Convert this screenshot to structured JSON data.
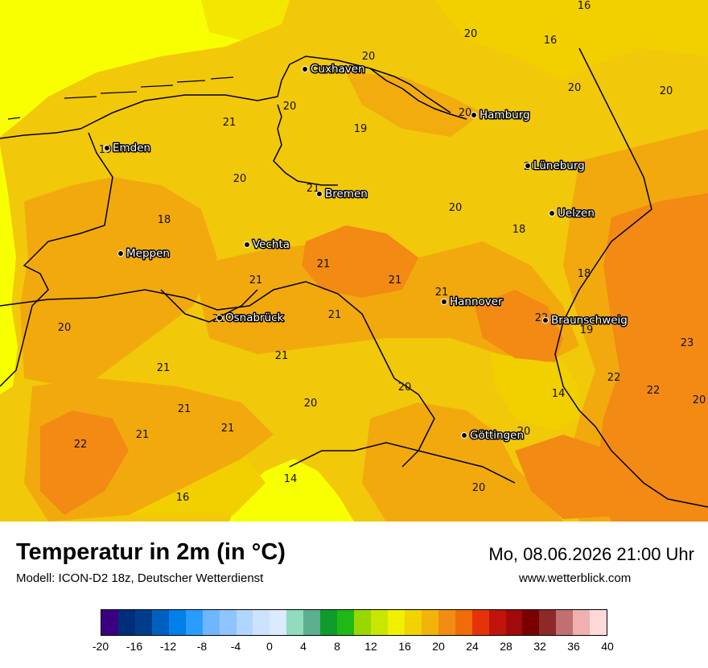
{
  "title": "Temperatur in 2m (in °C)",
  "model": "Modell: ICON-D2 18z, Deutscher Wetterdienst",
  "datetime": "Mo, 08.06.2026 21:00 Uhr",
  "website": "www.wetterblick.com",
  "colors": {
    "t14_16": "#eef000",
    "t16_18": "#f8ff00",
    "t18_20": "#f2c80a",
    "t20_22": "#f2a90e",
    "t22_24": "#f28a14",
    "t24_26": "#ef6b0e",
    "land_base": "#f2c80a"
  },
  "cities": [
    {
      "name": "Cuxhaven",
      "icon": "city-dot"
    },
    {
      "name": "Hamburg",
      "icon": "city-dot"
    },
    {
      "name": "Emden",
      "icon": "city-dot"
    },
    {
      "name": "Lüneburg",
      "icon": "city-dot"
    },
    {
      "name": "Bremen",
      "icon": "city-dot"
    },
    {
      "name": "Uelzen",
      "icon": "city-dot"
    },
    {
      "name": "Vechta",
      "icon": "city-dot"
    },
    {
      "name": "Meppen",
      "icon": "city-dot"
    },
    {
      "name": "Hannover",
      "icon": "city-dot"
    },
    {
      "name": "Osnabrück",
      "icon": "city-dot"
    },
    {
      "name": "Braunschweig",
      "icon": "city-dot"
    },
    {
      "name": "Göttingen",
      "icon": "city-dot"
    }
  ],
  "temps": [
    "16",
    "20",
    "16",
    "20",
    "20",
    "20",
    "20",
    "21",
    "19",
    "20",
    "19",
    "20",
    "21",
    "20",
    "18",
    "20",
    "18",
    "21",
    "21",
    "21",
    "18",
    "21",
    "21",
    "21",
    "22",
    "19",
    "20",
    "23",
    "21",
    "22",
    "22",
    "20",
    "20",
    "14",
    "21",
    "21",
    "21",
    "20",
    "20",
    "22",
    "21",
    "14",
    "16",
    "20"
  ],
  "colorbar": {
    "colors": [
      "#3b007f",
      "#002d78",
      "#003c8c",
      "#0060c0",
      "#0080e8",
      "#2a9cff",
      "#70b6ff",
      "#8ec4ff",
      "#b0d6ff",
      "#cce2ff",
      "#dceaff",
      "#90dcbc",
      "#5cb090",
      "#109c2c",
      "#20b814",
      "#98d800",
      "#c8e600",
      "#f0f000",
      "#f2d200",
      "#f2b40a",
      "#f28c14",
      "#f06c0a",
      "#e6320a",
      "#c0140a",
      "#a00a0a",
      "#7a0000",
      "#8c2a2a",
      "#c07070",
      "#f0b0b0",
      "#ffd8d8"
    ],
    "ticks": [
      "-20",
      "-16",
      "-12",
      "-8",
      "-4",
      "0",
      "4",
      "8",
      "12",
      "16",
      "20",
      "24",
      "28",
      "32",
      "36",
      "40"
    ]
  }
}
